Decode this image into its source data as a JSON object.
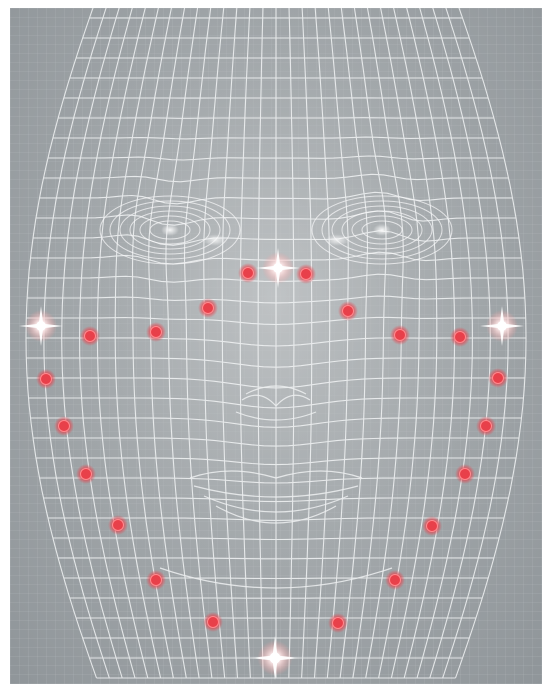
{
  "image": {
    "subject": "facial-wireframe-mesh",
    "colors": {
      "background": "#a3a8ab",
      "mesh": "#f2f4f5",
      "marker": "#e8404a",
      "flare": "#ffffff"
    }
  }
}
